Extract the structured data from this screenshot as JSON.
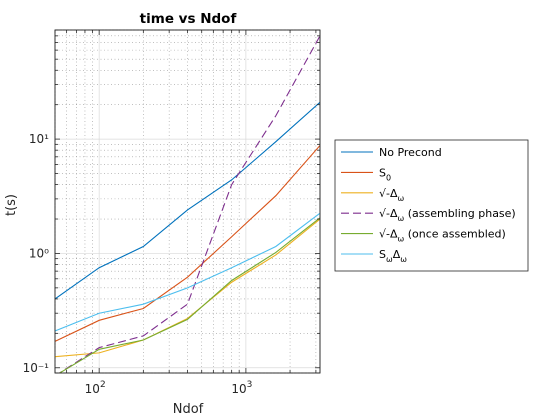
{
  "chart_data": {
    "type": "line",
    "title": "time vs Ndof",
    "xlabel": "Ndof",
    "ylabel": "t(s)",
    "xscale": "log",
    "yscale": "log",
    "xlim": [
      50,
      3200
    ],
    "ylim": [
      0.09,
      90
    ],
    "xticks": [
      {
        "value": 100,
        "base": "10",
        "exp": "2"
      },
      {
        "value": 1000,
        "base": "10",
        "exp": "3"
      }
    ],
    "yticks": [
      {
        "value": 0.1,
        "label": "10⁻¹"
      },
      {
        "value": 1,
        "label": "10⁰"
      },
      {
        "value": 10,
        "label": "10¹"
      }
    ],
    "grid": true,
    "minor_grid": true,
    "legend_position": "right-outside",
    "series": [
      {
        "name": "No Precond",
        "legend": {
          "text": "No Precond",
          "sub": "",
          "suffix": ""
        },
        "color": "#0072BD",
        "dash": "",
        "x": [
          50,
          100,
          200,
          400,
          800,
          1600,
          3200
        ],
        "y": [
          0.4,
          0.75,
          1.15,
          2.4,
          4.4,
          9.5,
          21
        ]
      },
      {
        "name": "S0",
        "legend": {
          "text": "S",
          "sub": "0",
          "suffix": ""
        },
        "color": "#D95319",
        "dash": "",
        "x": [
          50,
          100,
          200,
          400,
          800,
          1600,
          3200
        ],
        "y": [
          0.17,
          0.26,
          0.33,
          0.62,
          1.4,
          3.2,
          8.8
        ]
      },
      {
        "name": "√-Δω",
        "legend": {
          "text": "√-Δ",
          "sub": "ω",
          "suffix": ""
        },
        "color": "#EDB120",
        "dash": "",
        "x": [
          50,
          100,
          200,
          400,
          800,
          1600,
          3200
        ],
        "y": [
          0.125,
          0.135,
          0.175,
          0.27,
          0.56,
          0.97,
          2.0
        ]
      },
      {
        "name": "√-Δω (assembling phase)",
        "legend": {
          "text": "√-Δ",
          "sub": "ω",
          "suffix": " (assembling phase)"
        },
        "color": "#7E2F8E",
        "dash": "8 4",
        "x": [
          50,
          100,
          200,
          400,
          800,
          1600,
          3200
        ],
        "y": [
          0.085,
          0.15,
          0.19,
          0.36,
          4.0,
          16,
          80
        ]
      },
      {
        "name": "√-Δω (once assembled)",
        "legend": {
          "text": "√-Δ",
          "sub": "ω",
          "suffix": " (once assembled)"
        },
        "color": "#77AC30",
        "dash": "",
        "x": [
          50,
          100,
          200,
          400,
          800,
          1600,
          3200
        ],
        "y": [
          0.085,
          0.145,
          0.175,
          0.265,
          0.58,
          1.02,
          2.05
        ]
      },
      {
        "name": "SωΔω",
        "legend": {
          "text": "S",
          "sub": "ω",
          "suffix": "Δ",
          "sub2": "ω"
        },
        "color": "#4DBEEE",
        "dash": "",
        "x": [
          50,
          100,
          200,
          400,
          800,
          1600,
          3200
        ],
        "y": [
          0.21,
          0.3,
          0.36,
          0.5,
          0.75,
          1.15,
          2.25
        ]
      }
    ]
  }
}
